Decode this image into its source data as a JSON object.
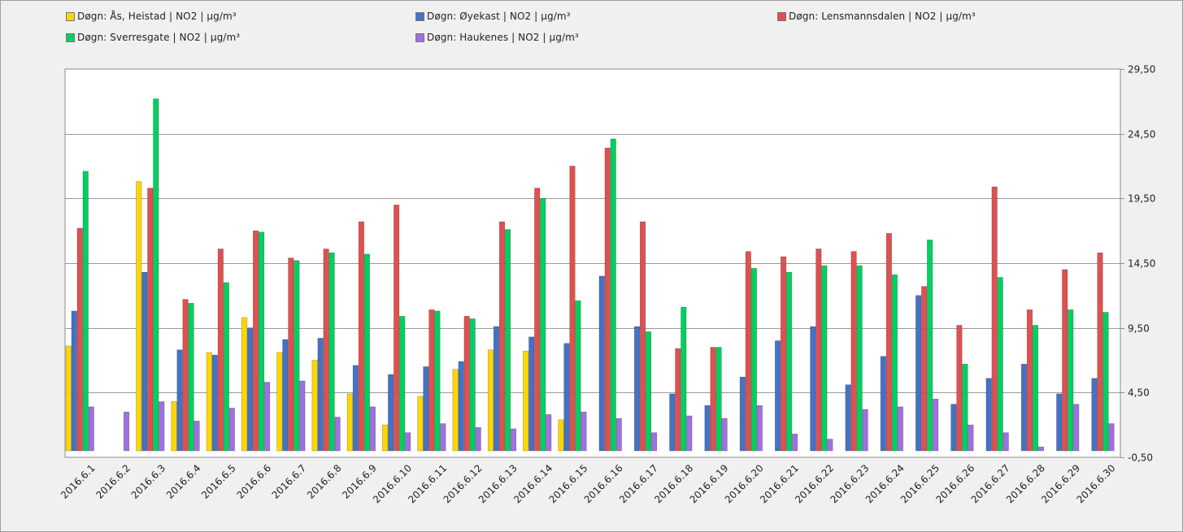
{
  "chart_data": {
    "type": "bar",
    "title": "",
    "xlabel": "",
    "ylabel": "",
    "ylim": [
      -0.5,
      29.5
    ],
    "yticks": [
      -0.5,
      4.5,
      9.5,
      14.5,
      19.5,
      24.5,
      29.5
    ],
    "ytick_labels": [
      "-0,50",
      "4,50",
      "9,50",
      "14,50",
      "19,50",
      "24,50",
      "29,50"
    ],
    "y_axis_side": "right",
    "grid": true,
    "legend_placement": "top",
    "categories": [
      "2016.6.1",
      "2016.6.2",
      "2016.6.3",
      "2016.6.4",
      "2016.6.5",
      "2016.6.6",
      "2016.6.7",
      "2016.6.8",
      "2016.6.9",
      "2016.6.10",
      "2016.6.11",
      "2016.6.12",
      "2016.6.13",
      "2016.6.14",
      "2016.6.15",
      "2016.6.16",
      "2016.6.17",
      "2016.6.18",
      "2016.6.19",
      "2016.6.20",
      "2016.6.21",
      "2016.6.22",
      "2016.6.23",
      "2016.6.24",
      "2016.6.25",
      "2016.6.26",
      "2016.6.27",
      "2016.6.28",
      "2016.6.29",
      "2016.6.30"
    ],
    "series": [
      {
        "name": "Døgn: Ås, Heistad | NO2 | µg/m³",
        "color": "#ffd700",
        "values": [
          8.1,
          null,
          20.8,
          3.8,
          7.6,
          10.3,
          7.6,
          7.0,
          4.4,
          2.0,
          4.2,
          6.3,
          7.8,
          7.7,
          2.4,
          null,
          null,
          null,
          null,
          null,
          null,
          null,
          null,
          null,
          null,
          null,
          null,
          null,
          null,
          null
        ]
      },
      {
        "name": "Døgn: Øyekast | NO2 | µg/m³",
        "color": "#4472c4",
        "values": [
          10.8,
          null,
          13.8,
          7.8,
          7.4,
          9.5,
          8.6,
          8.7,
          6.6,
          5.9,
          6.5,
          6.9,
          9.6,
          8.8,
          8.3,
          13.5,
          9.6,
          4.4,
          3.5,
          5.7,
          8.5,
          9.6,
          5.1,
          7.3,
          12.0,
          3.6,
          5.6,
          6.7,
          4.4,
          5.6
        ]
      },
      {
        "name": "Døgn: Lensmannsdalen | NO2 | µg/m³",
        "color": "#e05050",
        "values": [
          17.2,
          null,
          20.3,
          11.7,
          15.6,
          17.0,
          14.9,
          15.6,
          17.7,
          19.0,
          10.9,
          10.4,
          17.7,
          20.3,
          22.0,
          23.4,
          17.7,
          7.9,
          8.0,
          15.4,
          15.0,
          15.6,
          15.4,
          16.8,
          12.7,
          9.7,
          20.4,
          10.9,
          14.0,
          15.3
        ]
      },
      {
        "name": "Døgn: Sverresgate  | NO2 | µg/m³",
        "color": "#00d060",
        "values": [
          21.6,
          null,
          27.2,
          11.4,
          13.0,
          16.9,
          14.7,
          15.3,
          15.2,
          10.4,
          10.8,
          10.2,
          17.1,
          19.5,
          11.6,
          24.1,
          9.2,
          11.1,
          8.0,
          14.1,
          13.8,
          14.3,
          14.3,
          13.6,
          16.3,
          6.7,
          13.4,
          9.7,
          10.9,
          10.7
        ]
      },
      {
        "name": "Døgn: Haukenes | NO2 | µg/m³",
        "color": "#a070e0",
        "values": [
          3.4,
          3.0,
          3.8,
          2.3,
          3.3,
          5.3,
          5.4,
          2.6,
          3.4,
          1.4,
          2.1,
          1.8,
          1.7,
          2.8,
          3.0,
          2.5,
          1.4,
          2.7,
          2.5,
          3.5,
          1.3,
          0.9,
          3.2,
          3.4,
          4.0,
          2.0,
          1.4,
          0.3,
          3.6,
          2.1
        ]
      }
    ]
  }
}
